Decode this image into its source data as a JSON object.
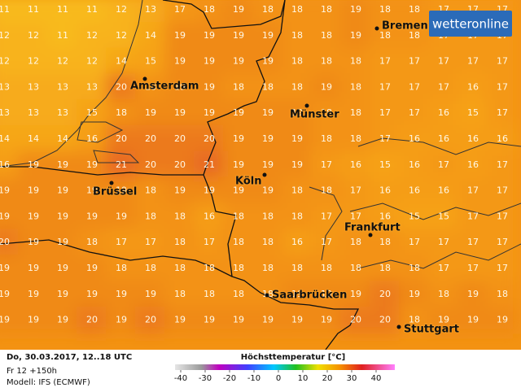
{
  "logo": "wetteronline",
  "footer": {
    "valid": "Do, 30.03.2017, 12..18 UTC",
    "run": "Fr 12 +150h",
    "model": "Modell: IFS (ECMWF)"
  },
  "scale": {
    "title": "Höchsttemperatur [°C]",
    "ticks": [
      -40,
      -30,
      -20,
      -10,
      0,
      10,
      20,
      30,
      40
    ]
  },
  "grid": [
    [
      11,
      11,
      11,
      11,
      12,
      13,
      17,
      18,
      19,
      18,
      18,
      18,
      19,
      18,
      18,
      17,
      17,
      17
    ],
    [
      12,
      12,
      11,
      12,
      12,
      14,
      19,
      19,
      19,
      19,
      18,
      18,
      19,
      18,
      18,
      17,
      17,
      17
    ],
    [
      12,
      12,
      12,
      12,
      14,
      15,
      19,
      19,
      19,
      19,
      18,
      18,
      18,
      17,
      17,
      17,
      17,
      17
    ],
    [
      13,
      13,
      13,
      13,
      20,
      18,
      19,
      19,
      18,
      18,
      18,
      19,
      18,
      17,
      17,
      17,
      16,
      17
    ],
    [
      13,
      13,
      13,
      15,
      18,
      19,
      19,
      19,
      19,
      19,
      19,
      18,
      18,
      17,
      17,
      16,
      15,
      17
    ],
    [
      14,
      14,
      14,
      16,
      20,
      20,
      20,
      20,
      19,
      19,
      19,
      18,
      18,
      17,
      16,
      16,
      16,
      16
    ],
    [
      16,
      19,
      19,
      19,
      21,
      20,
      20,
      21,
      19,
      19,
      19,
      17,
      16,
      15,
      16,
      17,
      16,
      17
    ],
    [
      19,
      19,
      19,
      19,
      19,
      18,
      19,
      19,
      19,
      19,
      18,
      18,
      17,
      16,
      16,
      16,
      17,
      17
    ],
    [
      19,
      19,
      19,
      19,
      19,
      18,
      18,
      16,
      18,
      18,
      18,
      17,
      17,
      16,
      15,
      15,
      17,
      17
    ],
    [
      20,
      19,
      19,
      18,
      17,
      17,
      18,
      17,
      18,
      18,
      16,
      17,
      18,
      18,
      17,
      17,
      17,
      17
    ],
    [
      19,
      19,
      19,
      19,
      18,
      18,
      18,
      18,
      18,
      18,
      18,
      18,
      18,
      18,
      18,
      17,
      17,
      17
    ],
    [
      19,
      19,
      19,
      19,
      19,
      19,
      18,
      18,
      18,
      18,
      19,
      19,
      19,
      20,
      19,
      18,
      19,
      18
    ],
    [
      19,
      19,
      19,
      20,
      19,
      20,
      19,
      19,
      19,
      19,
      19,
      19,
      20,
      20,
      18,
      19,
      19,
      19
    ]
  ],
  "cities": [
    "Bremen",
    "Amsterdam",
    "Münster",
    "Köln",
    "Brüssel",
    "Frankfurt",
    "Saarbrücken",
    "Stuttgart"
  ]
}
